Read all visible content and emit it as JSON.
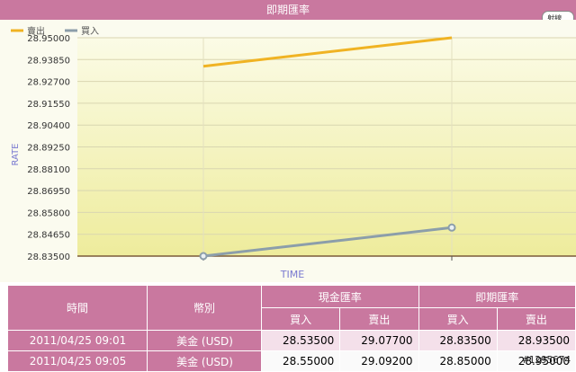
{
  "header": {
    "title": "即期匯率",
    "side_button": "射線..."
  },
  "chart_data": {
    "type": "line",
    "ylabel": "RATE",
    "xlabel": "TIME",
    "ylim": [
      28.835,
      28.95
    ],
    "yticks": [
      "28.95000",
      "28.93850",
      "28.92700",
      "28.91550",
      "28.90400",
      "28.89250",
      "28.88100",
      "28.86950",
      "28.85800",
      "28.84650",
      "28.83500"
    ],
    "series": [
      {
        "name": "賣出",
        "color": "#f0b323",
        "values": [
          28.935,
          28.95
        ]
      },
      {
        "name": "買入",
        "color": "#8c9eaa",
        "values": [
          28.835,
          28.85
        ]
      }
    ],
    "grid": true,
    "legend": "top-left"
  },
  "table": {
    "col_time": "時間",
    "col_currency": "幣別",
    "group_cash": "現金匯率",
    "group_spot": "即期匯率",
    "buy": "買入",
    "sell": "賣出",
    "rows": [
      {
        "time": "2011/04/25 09:01",
        "currency": "美金 (USD)",
        "cash_buy": "28.53500",
        "cash_sell": "29.07700",
        "spot_buy": "28.83500",
        "spot_sell": "28.93500"
      },
      {
        "time": "2011/04/25 09:05",
        "currency": "美金 (USD)",
        "cash_buy": "28.55000",
        "cash_sell": "29.09200",
        "spot_buy": "28.85000",
        "spot_sell": "28.95000"
      }
    ]
  },
  "watermark": "#1295674"
}
